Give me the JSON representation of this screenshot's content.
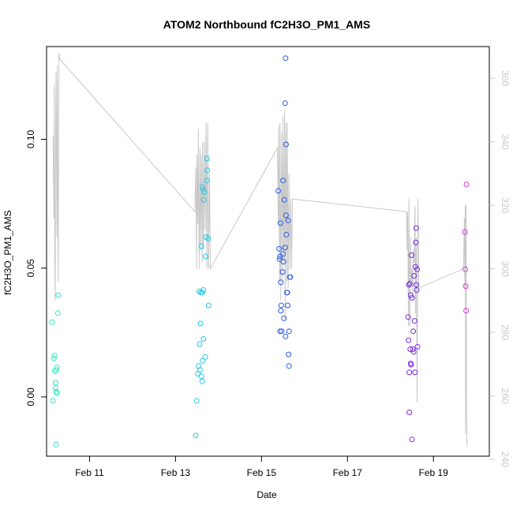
{
  "chart_data": {
    "type": "scatter",
    "title": "ATOM2 Northbound fC2H3O_PM1_AMS",
    "xlabel": "Date",
    "ylabel": "fC2H3O_PM1_AMS",
    "x_unit": "days since Feb 10 00:00",
    "xlim": [
      0.0,
      10.3
    ],
    "ylim": [
      -0.023,
      0.136
    ],
    "y2lim": [
      241.0,
      370.0
    ],
    "x_ticks": [
      {
        "value": 1,
        "label": "Feb 11"
      },
      {
        "value": 3,
        "label": "Feb 13"
      },
      {
        "value": 5,
        "label": "Feb 15"
      },
      {
        "value": 7,
        "label": "Feb 17"
      },
      {
        "value": 9,
        "label": "Feb 19"
      }
    ],
    "y_ticks": [
      {
        "value": 0.0,
        "label": "0.00"
      },
      {
        "value": 0.05,
        "label": "0.05"
      },
      {
        "value": 0.1,
        "label": "0.10"
      }
    ],
    "y2_ticks": [
      {
        "value": 240,
        "label": "240"
      },
      {
        "value": 260,
        "label": "260"
      },
      {
        "value": 280,
        "label": "280"
      },
      {
        "value": 300,
        "label": "300"
      },
      {
        "value": 320,
        "label": "320"
      },
      {
        "value": 340,
        "label": "340"
      },
      {
        "value": 360,
        "label": "360"
      }
    ],
    "points": [
      {
        "x": 0.15,
        "y": -0.0015,
        "color": "#2fe8c0"
      },
      {
        "x": 0.17,
        "y": 0.015,
        "color": "#2fe8c0"
      },
      {
        "x": 0.13,
        "y": 0.029,
        "color": "#2fe8c0"
      },
      {
        "x": 0.19,
        "y": 0.016,
        "color": "#2fe8c0"
      },
      {
        "x": 0.19,
        "y": 0.01,
        "color": "#2fe8c0"
      },
      {
        "x": 0.21,
        "y": 0.0055,
        "color": "#2fe8c0"
      },
      {
        "x": 0.21,
        "y": 0.0035,
        "color": "#2fe8c0"
      },
      {
        "x": 0.22,
        "y": 0.002,
        "color": "#2fe8c0"
      },
      {
        "x": 0.24,
        "y": 0.0015,
        "color": "#2fe8c0"
      },
      {
        "x": 0.24,
        "y": 0.0115,
        "color": "#2fe8c0"
      },
      {
        "x": 0.23,
        "y": 0.0105,
        "color": "#2fe8c0"
      },
      {
        "x": 0.26,
        "y": 0.0325,
        "color": "#2fe8c0"
      },
      {
        "x": 0.27,
        "y": 0.0395,
        "color": "#2fe8c0"
      },
      {
        "x": 0.22,
        "y": -0.0185,
        "color": "#2fe8c0"
      },
      {
        "x": 3.47,
        "y": -0.015,
        "color": "#22c8e6"
      },
      {
        "x": 3.49,
        "y": -0.0015,
        "color": "#22c8e6"
      },
      {
        "x": 3.52,
        "y": 0.009,
        "color": "#22c8e6"
      },
      {
        "x": 3.54,
        "y": 0.012,
        "color": "#22c8e6"
      },
      {
        "x": 3.56,
        "y": 0.0205,
        "color": "#22c8e6"
      },
      {
        "x": 3.58,
        "y": 0.0285,
        "color": "#22c8e6"
      },
      {
        "x": 3.55,
        "y": 0.041,
        "color": "#22c8e6"
      },
      {
        "x": 3.59,
        "y": 0.0405,
        "color": "#22c8e6"
      },
      {
        "x": 3.62,
        "y": 0.0405,
        "color": "#22c8e6"
      },
      {
        "x": 3.65,
        "y": 0.0415,
        "color": "#22c8e6"
      },
      {
        "x": 3.57,
        "y": 0.0105,
        "color": "#22c8e6"
      },
      {
        "x": 3.6,
        "y": 0.008,
        "color": "#22c8e6"
      },
      {
        "x": 3.62,
        "y": 0.006,
        "color": "#22c8e6"
      },
      {
        "x": 3.63,
        "y": 0.014,
        "color": "#22c8e6"
      },
      {
        "x": 3.65,
        "y": 0.0225,
        "color": "#22c8e6"
      },
      {
        "x": 3.69,
        "y": 0.0155,
        "color": "#22c8e6"
      },
      {
        "x": 3.6,
        "y": 0.0585,
        "color": "#22c8e6"
      },
      {
        "x": 3.62,
        "y": 0.0815,
        "color": "#22c8e6"
      },
      {
        "x": 3.65,
        "y": 0.0805,
        "color": "#22c8e6"
      },
      {
        "x": 3.66,
        "y": 0.0765,
        "color": "#22c8e6"
      },
      {
        "x": 3.67,
        "y": 0.0795,
        "color": "#22c8e6"
      },
      {
        "x": 3.7,
        "y": 0.0545,
        "color": "#22c8e6"
      },
      {
        "x": 3.71,
        "y": 0.062,
        "color": "#22c8e6"
      },
      {
        "x": 3.73,
        "y": 0.084,
        "color": "#22c8e6"
      },
      {
        "x": 3.74,
        "y": 0.088,
        "color": "#22c8e6"
      },
      {
        "x": 3.73,
        "y": 0.0925,
        "color": "#22c8e6"
      },
      {
        "x": 3.76,
        "y": 0.0615,
        "color": "#22c8e6"
      },
      {
        "x": 3.77,
        "y": 0.0355,
        "color": "#22c8e6"
      },
      {
        "x": 5.39,
        "y": 0.08,
        "color": "#2a5ae6"
      },
      {
        "x": 5.41,
        "y": 0.0575,
        "color": "#2a5ae6"
      },
      {
        "x": 5.42,
        "y": 0.0535,
        "color": "#2a5ae6"
      },
      {
        "x": 5.43,
        "y": 0.0545,
        "color": "#2a5ae6"
      },
      {
        "x": 5.44,
        "y": 0.0675,
        "color": "#2a5ae6"
      },
      {
        "x": 5.45,
        "y": 0.0445,
        "color": "#2a5ae6"
      },
      {
        "x": 5.46,
        "y": 0.0355,
        "color": "#2a5ae6"
      },
      {
        "x": 5.45,
        "y": 0.0335,
        "color": "#2a5ae6"
      },
      {
        "x": 5.43,
        "y": 0.0255,
        "color": "#2a5ae6"
      },
      {
        "x": 5.47,
        "y": 0.0255,
        "color": "#2a5ae6"
      },
      {
        "x": 5.49,
        "y": 0.0485,
        "color": "#2a5ae6"
      },
      {
        "x": 5.5,
        "y": 0.0555,
        "color": "#2a5ae6"
      },
      {
        "x": 5.51,
        "y": 0.0525,
        "color": "#2a5ae6"
      },
      {
        "x": 5.52,
        "y": 0.0305,
        "color": "#2a5ae6"
      },
      {
        "x": 5.5,
        "y": 0.084,
        "color": "#2a5ae6"
      },
      {
        "x": 5.53,
        "y": 0.0765,
        "color": "#2a5ae6"
      },
      {
        "x": 5.55,
        "y": 0.058,
        "color": "#2a5ae6"
      },
      {
        "x": 5.56,
        "y": 0.0235,
        "color": "#2a5ae6"
      },
      {
        "x": 5.57,
        "y": 0.0705,
        "color": "#2a5ae6"
      },
      {
        "x": 5.58,
        "y": 0.063,
        "color": "#2a5ae6"
      },
      {
        "x": 5.59,
        "y": 0.0405,
        "color": "#2a5ae6"
      },
      {
        "x": 5.6,
        "y": 0.0405,
        "color": "#2a5ae6"
      },
      {
        "x": 5.61,
        "y": 0.0355,
        "color": "#2a5ae6"
      },
      {
        "x": 5.62,
        "y": 0.0685,
        "color": "#2a5ae6"
      },
      {
        "x": 5.63,
        "y": 0.0165,
        "color": "#2a5ae6"
      },
      {
        "x": 5.64,
        "y": 0.0255,
        "color": "#2a5ae6"
      },
      {
        "x": 5.64,
        "y": 0.012,
        "color": "#2a5ae6"
      },
      {
        "x": 5.66,
        "y": 0.0465,
        "color": "#2a5ae6"
      },
      {
        "x": 5.67,
        "y": 0.0465,
        "color": "#2a5ae6"
      },
      {
        "x": 5.57,
        "y": 0.098,
        "color": "#2a5ae6"
      },
      {
        "x": 5.55,
        "y": 0.114,
        "color": "#2a5ae6"
      },
      {
        "x": 5.56,
        "y": 0.1315,
        "color": "#2a5ae6"
      },
      {
        "x": 8.41,
        "y": 0.031,
        "color": "#7a2ae0"
      },
      {
        "x": 8.42,
        "y": 0.022,
        "color": "#7a2ae0"
      },
      {
        "x": 8.43,
        "y": 0.0435,
        "color": "#7a2ae0"
      },
      {
        "x": 8.44,
        "y": 0.0095,
        "color": "#7a2ae0"
      },
      {
        "x": 8.44,
        "y": -0.006,
        "color": "#7a2ae0"
      },
      {
        "x": 8.45,
        "y": 0.044,
        "color": "#7a2ae0"
      },
      {
        "x": 8.46,
        "y": 0.0185,
        "color": "#7a2ae0"
      },
      {
        "x": 8.47,
        "y": 0.013,
        "color": "#7a2ae0"
      },
      {
        "x": 8.47,
        "y": 0.0395,
        "color": "#7a2ae0"
      },
      {
        "x": 8.48,
        "y": 0.0125,
        "color": "#7a2ae0"
      },
      {
        "x": 8.49,
        "y": 0.055,
        "color": "#7a2ae0"
      },
      {
        "x": 8.5,
        "y": 0.0385,
        "color": "#7a2ae0"
      },
      {
        "x": 8.5,
        "y": -0.0165,
        "color": "#7a2ae0"
      },
      {
        "x": 8.52,
        "y": 0.0185,
        "color": "#7a2ae0"
      },
      {
        "x": 8.53,
        "y": 0.0255,
        "color": "#7a2ae0"
      },
      {
        "x": 8.54,
        "y": 0.0175,
        "color": "#7a2ae0"
      },
      {
        "x": 8.55,
        "y": 0.047,
        "color": "#7a2ae0"
      },
      {
        "x": 8.56,
        "y": 0.0295,
        "color": "#7a2ae0"
      },
      {
        "x": 8.57,
        "y": 0.0095,
        "color": "#7a2ae0"
      },
      {
        "x": 8.58,
        "y": 0.0505,
        "color": "#7a2ae0"
      },
      {
        "x": 8.59,
        "y": 0.06,
        "color": "#7a2ae0"
      },
      {
        "x": 8.6,
        "y": 0.0655,
        "color": "#7a2ae0"
      },
      {
        "x": 8.6,
        "y": 0.0435,
        "color": "#7a2ae0"
      },
      {
        "x": 8.61,
        "y": 0.0415,
        "color": "#7a2ae0"
      },
      {
        "x": 8.62,
        "y": 0.0495,
        "color": "#7a2ae0"
      },
      {
        "x": 8.63,
        "y": 0.0195,
        "color": "#7a2ae0"
      },
      {
        "x": 9.73,
        "y": 0.064,
        "color": "#d93ee0"
      },
      {
        "x": 9.74,
        "y": 0.0495,
        "color": "#d93ee0"
      },
      {
        "x": 9.75,
        "y": 0.043,
        "color": "#d93ee0"
      },
      {
        "x": 9.76,
        "y": 0.0335,
        "color": "#d93ee0"
      },
      {
        "x": 9.77,
        "y": 0.0825,
        "color": "#d93ee0"
      }
    ],
    "secondary_line": {
      "color": "#c8c8c8",
      "x": [
        0.15,
        0.17,
        0.18,
        0.19,
        0.2,
        0.21,
        0.22,
        0.24,
        0.25,
        0.27,
        0.29,
        0.31,
        3.45,
        3.47,
        3.49,
        3.5,
        3.52,
        3.53,
        3.55,
        3.57,
        3.58,
        3.6,
        3.62,
        3.63,
        3.65,
        3.67,
        3.69,
        3.71,
        3.73,
        3.75,
        3.77,
        3.79,
        3.81,
        5.37,
        5.39,
        5.4,
        5.42,
        5.43,
        5.45,
        5.47,
        5.49,
        5.5,
        5.52,
        5.54,
        5.55,
        5.57,
        5.59,
        5.6,
        5.62,
        5.64,
        5.66,
        5.68,
        5.7,
        5.72,
        8.37,
        8.39,
        8.4,
        8.42,
        8.43,
        8.45,
        8.47,
        8.48,
        8.5,
        8.52,
        8.53,
        8.55,
        8.57,
        8.58,
        8.6,
        8.62,
        8.64,
        8.66,
        9.7,
        9.72,
        9.73,
        9.74,
        9.75,
        9.76,
        9.77,
        9.78
      ],
      "y2": [
        342,
        316,
        358,
        306,
        290,
        336,
        362,
        310,
        364,
        296,
        368,
        366,
        318,
        332,
        300,
        336,
        314,
        344,
        300,
        338,
        306,
        336,
        302,
        340,
        306,
        340,
        312,
        346,
        300,
        346,
        300,
        330,
        300,
        338,
        314,
        345,
        296,
        346,
        290,
        343,
        296,
        348,
        302,
        350,
        284,
        346,
        296,
        346,
        294,
        330,
        300,
        322,
        300,
        322,
        318,
        306,
        318,
        282,
        322,
        282,
        310,
        296,
        300,
        290,
        306,
        302,
        320,
        286,
        310,
        258,
        322,
        294,
        300,
        316,
        294,
        320,
        248,
        320,
        258,
        244
      ]
    }
  }
}
